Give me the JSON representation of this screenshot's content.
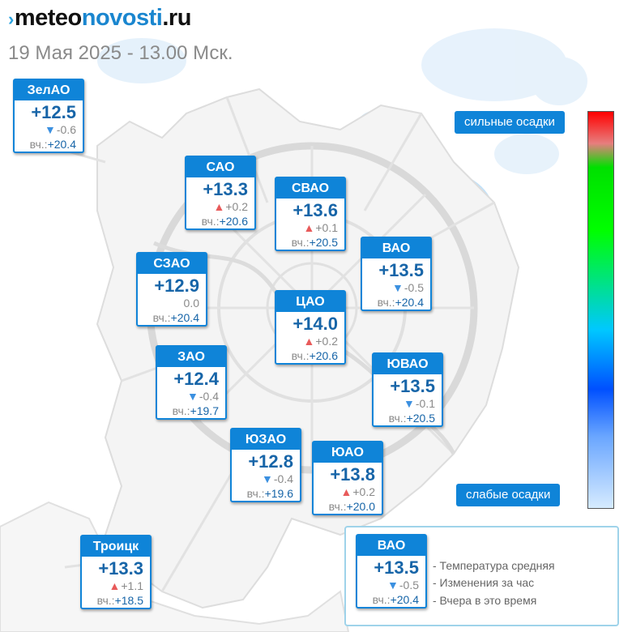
{
  "header": {
    "logo_mark": "›",
    "logo_part1": "meteo",
    "logo_part2": "novosti",
    "logo_part3": ".ru",
    "subtitle": "19 Мая 2025 - 13.00 Мск."
  },
  "districts": [
    {
      "id": "zelao",
      "name": "ЗелАО",
      "temp": "+12.5",
      "dir": "down",
      "change": "-0.6",
      "yesterday_label": "вч.:",
      "yesterday": "+20.4"
    },
    {
      "id": "sao",
      "name": "САО",
      "temp": "+13.3",
      "dir": "up",
      "change": "+0.2",
      "yesterday_label": "вч.:",
      "yesterday": "+20.6"
    },
    {
      "id": "svao",
      "name": "СВАО",
      "temp": "+13.6",
      "dir": "up",
      "change": "+0.1",
      "yesterday_label": "вч.:",
      "yesterday": "+20.5"
    },
    {
      "id": "vao",
      "name": "ВАО",
      "temp": "+13.5",
      "dir": "down",
      "change": "-0.5",
      "yesterday_label": "вч.:",
      "yesterday": "+20.4"
    },
    {
      "id": "szao",
      "name": "СЗАО",
      "temp": "+12.9",
      "dir": "none",
      "change": "0.0",
      "yesterday_label": "вч.:",
      "yesterday": "+20.4"
    },
    {
      "id": "cao",
      "name": "ЦАО",
      "temp": "+14.0",
      "dir": "up",
      "change": "+0.2",
      "yesterday_label": "вч.:",
      "yesterday": "+20.6"
    },
    {
      "id": "zao",
      "name": "ЗАО",
      "temp": "+12.4",
      "dir": "down",
      "change": "-0.4",
      "yesterday_label": "вч.:",
      "yesterday": "+19.7"
    },
    {
      "id": "yuvao",
      "name": "ЮВАО",
      "temp": "+13.5",
      "dir": "down",
      "change": "-0.1",
      "yesterday_label": "вч.:",
      "yesterday": "+20.5"
    },
    {
      "id": "yuzao",
      "name": "ЮЗАО",
      "temp": "+12.8",
      "dir": "down",
      "change": "-0.4",
      "yesterday_label": "вч.:",
      "yesterday": "+19.6"
    },
    {
      "id": "yuao",
      "name": "ЮАО",
      "temp": "+13.8",
      "dir": "up",
      "change": "+0.2",
      "yesterday_label": "вч.:",
      "yesterday": "+20.0"
    },
    {
      "id": "troitsk",
      "name": "Троицк",
      "temp": "+13.3",
      "dir": "up",
      "change": "+1.1",
      "yesterday_label": "вч.:",
      "yesterday": "+18.5"
    }
  ],
  "scale": {
    "top_label": "сильные осадки",
    "bottom_label": "слабые осадки"
  },
  "legend": {
    "sample": {
      "name": "ВАО",
      "temp": "+13.5",
      "dir": "down",
      "change": "-0.5",
      "yesterday_label": "вч.:",
      "yesterday": "+20.4"
    },
    "line1": "- Температура средняя",
    "line2": "- Изменения за час",
    "line3": "- Вчера в это время"
  },
  "colors": {
    "accent": "#0f84d8",
    "temp_text": "#1765a8",
    "up_arrow": "#e85a5a",
    "down_arrow": "#3b90e0",
    "precip_overlay": "#b8dcf7"
  }
}
